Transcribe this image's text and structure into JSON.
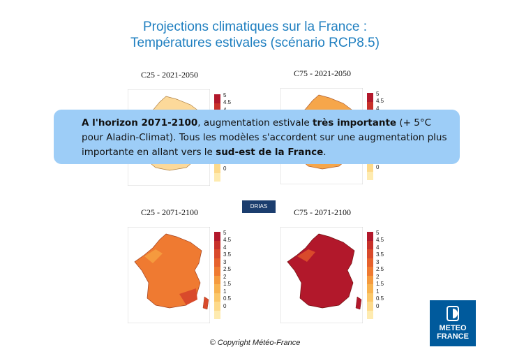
{
  "slide": {
    "title_line1": "Projections climatiques sur la France :",
    "title_line2": "Températures estivales (scénario RCP8.5)",
    "copyright": "© Copyright Météo-France"
  },
  "panels": [
    {
      "label": "C25 - 2021-2050"
    },
    {
      "label": "C75 - 2021-2050"
    },
    {
      "label": "C25 - 2071-2100"
    },
    {
      "label": "C75 - 2071-2100"
    }
  ],
  "colorbar": {
    "labels": [
      "5",
      "4.5",
      "4",
      "3.5",
      "3",
      "2.5",
      "2",
      "1.5",
      "1",
      "0.5",
      "0"
    ],
    "colors": [
      "#b2182b",
      "#c8312a",
      "#d94a2b",
      "#e6612c",
      "#ef7a31",
      "#f59a3e",
      "#f8b350",
      "#fbc86a",
      "#fdda8b",
      "#feebb0"
    ]
  },
  "callout": {
    "bold1": "A l'horizon 2071-2100",
    "text1": ", augmentation estivale ",
    "bold2": "très importante",
    "text2": " (+ 5°C pour Aladin-Climat). Tous les modèles s'accordent sur une augmentation plus importante en allant vers le ",
    "bold3": "sud-est de la France",
    "text3": "."
  },
  "badges": {
    "drias": "DRIAS",
    "meteo_line1": "METEO",
    "meteo_line2": "FRANCE"
  }
}
